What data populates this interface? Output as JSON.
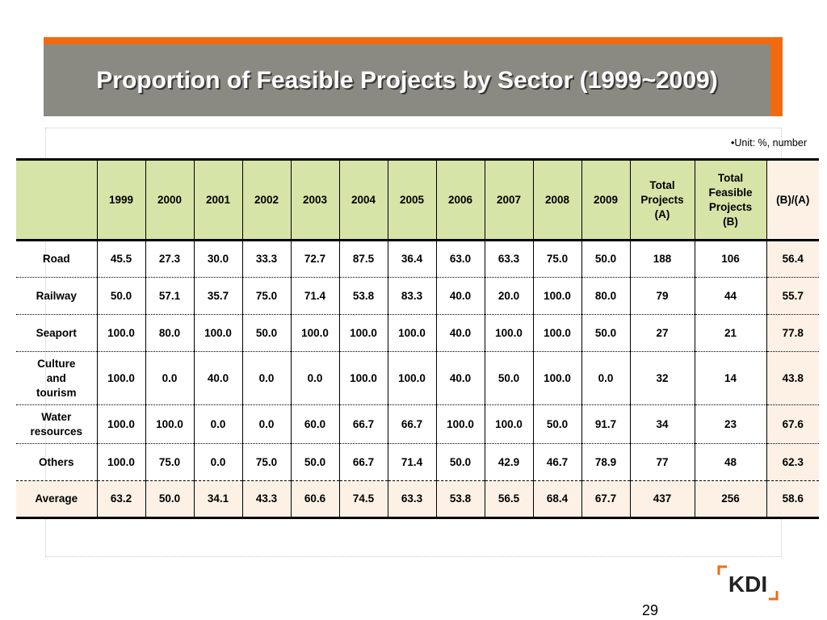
{
  "title": "Proportion of Feasible Projects by Sector (1999~2009)",
  "unit_note": "•Unit: %, number",
  "table": {
    "columns": [
      "",
      "1999",
      "2000",
      "2001",
      "2002",
      "2003",
      "2004",
      "2005",
      "2006",
      "2007",
      "2008",
      "2009"
    ],
    "col_total_a": {
      "line1": "Total",
      "line2": "Projects",
      "line3": "(A)"
    },
    "col_total_b": {
      "line1": "Total",
      "line2": "Feasible",
      "line3": "Projects",
      "line4": "(B)"
    },
    "col_ratio": "(B)/(A)",
    "rows": [
      {
        "label": [
          "Road"
        ],
        "cells": [
          "45.5",
          "27.3",
          "30.0",
          "33.3",
          "72.7",
          "87.5",
          "36.4",
          "63.0",
          "63.3",
          "75.0",
          "50.0",
          "188",
          "106",
          "56.4"
        ]
      },
      {
        "label": [
          "Railway"
        ],
        "cells": [
          "50.0",
          "57.1",
          "35.7",
          "75.0",
          "71.4",
          "53.8",
          "83.3",
          "40.0",
          "20.0",
          "100.0",
          "80.0",
          "79",
          "44",
          "55.7"
        ]
      },
      {
        "label": [
          "Seaport"
        ],
        "cells": [
          "100.0",
          "80.0",
          "100.0",
          "50.0",
          "100.0",
          "100.0",
          "100.0",
          "40.0",
          "100.0",
          "100.0",
          "50.0",
          "27",
          "21",
          "77.8"
        ]
      },
      {
        "label": [
          "Culture",
          "and",
          "tourism"
        ],
        "cells": [
          "100.0",
          "0.0",
          "40.0",
          "0.0",
          "0.0",
          "100.0",
          "100.0",
          "40.0",
          "50.0",
          "100.0",
          "0.0",
          "32",
          "14",
          "43.8"
        ]
      },
      {
        "label": [
          "Water",
          "resources"
        ],
        "cells": [
          "100.0",
          "100.0",
          "0.0",
          "0.0",
          "60.0",
          "66.7",
          "66.7",
          "100.0",
          "100.0",
          "50.0",
          "91.7",
          "34",
          "23",
          "67.6"
        ]
      },
      {
        "label": [
          "Others"
        ],
        "cells": [
          "100.0",
          "75.0",
          "0.0",
          "75.0",
          "50.0",
          "66.7",
          "71.4",
          "50.0",
          "42.9",
          "46.7",
          "78.9",
          "77",
          "48",
          "62.3"
        ]
      },
      {
        "label": [
          "Average"
        ],
        "cells": [
          "63.2",
          "50.0",
          "34.1",
          "43.3",
          "60.6",
          "74.5",
          "63.3",
          "53.8",
          "56.5",
          "68.4",
          "67.7",
          "437",
          "256",
          "58.6"
        ]
      }
    ]
  },
  "logo": {
    "text": "KDI",
    "icon": "kdi-logo-icon",
    "colors": {
      "text": "#222222",
      "bracket": "#f26a10"
    }
  },
  "page_number": "29",
  "colors": {
    "accent": "#f26a10",
    "title_band": "#8a8a83",
    "header_bg": "#d6e4a8",
    "ratio_bg": "#fdf1e5"
  }
}
